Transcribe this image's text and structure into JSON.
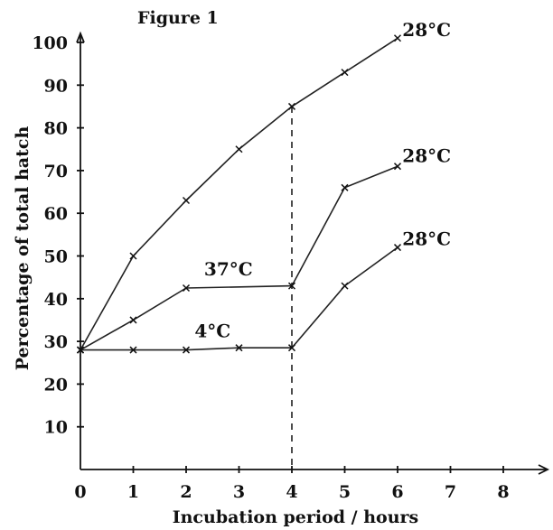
{
  "chart_data": {
    "type": "line",
    "title": "Figure 1",
    "xlabel": "Incubation period / hours",
    "ylabel": "Percentage of total hatch",
    "xlim": [
      0,
      8
    ],
    "ylim": [
      0,
      100
    ],
    "x_ticks": [
      "0",
      "1",
      "2",
      "3",
      "4",
      "5",
      "6",
      "7",
      "8"
    ],
    "y_ticks": [
      "10",
      "20",
      "30",
      "40",
      "50",
      "60",
      "70",
      "80",
      "90",
      "100"
    ],
    "series": [
      {
        "name": "",
        "points": [
          [
            0,
            28
          ],
          [
            1,
            50
          ],
          [
            2,
            63
          ],
          [
            3,
            75
          ],
          [
            4,
            85
          ],
          [
            5,
            93
          ],
          [
            6,
            101
          ]
        ]
      },
      {
        "name": "",
        "points": [
          [
            0,
            28
          ],
          [
            1,
            35
          ],
          [
            2,
            42.5
          ],
          [
            4,
            43
          ],
          [
            5,
            66
          ],
          [
            6,
            71
          ]
        ]
      },
      {
        "name": "",
        "points": [
          [
            0,
            28
          ],
          [
            1,
            28
          ],
          [
            2,
            28
          ],
          [
            3,
            28.5
          ],
          [
            4,
            28.5
          ],
          [
            5,
            43
          ],
          [
            6,
            52
          ]
        ]
      }
    ],
    "annotations": [
      {
        "text": "28°C",
        "x": 6.55,
        "y": 101.5
      },
      {
        "text": "28°C",
        "x": 6.55,
        "y": 72
      },
      {
        "text": "28°C",
        "x": 6.55,
        "y": 52.5
      },
      {
        "text": "37°C",
        "x": 2.8,
        "y": 45.5
      },
      {
        "text": "4°C",
        "x": 2.5,
        "y": 31
      }
    ],
    "reference_line": {
      "x": 4,
      "style": "dashed"
    },
    "grid": false
  }
}
